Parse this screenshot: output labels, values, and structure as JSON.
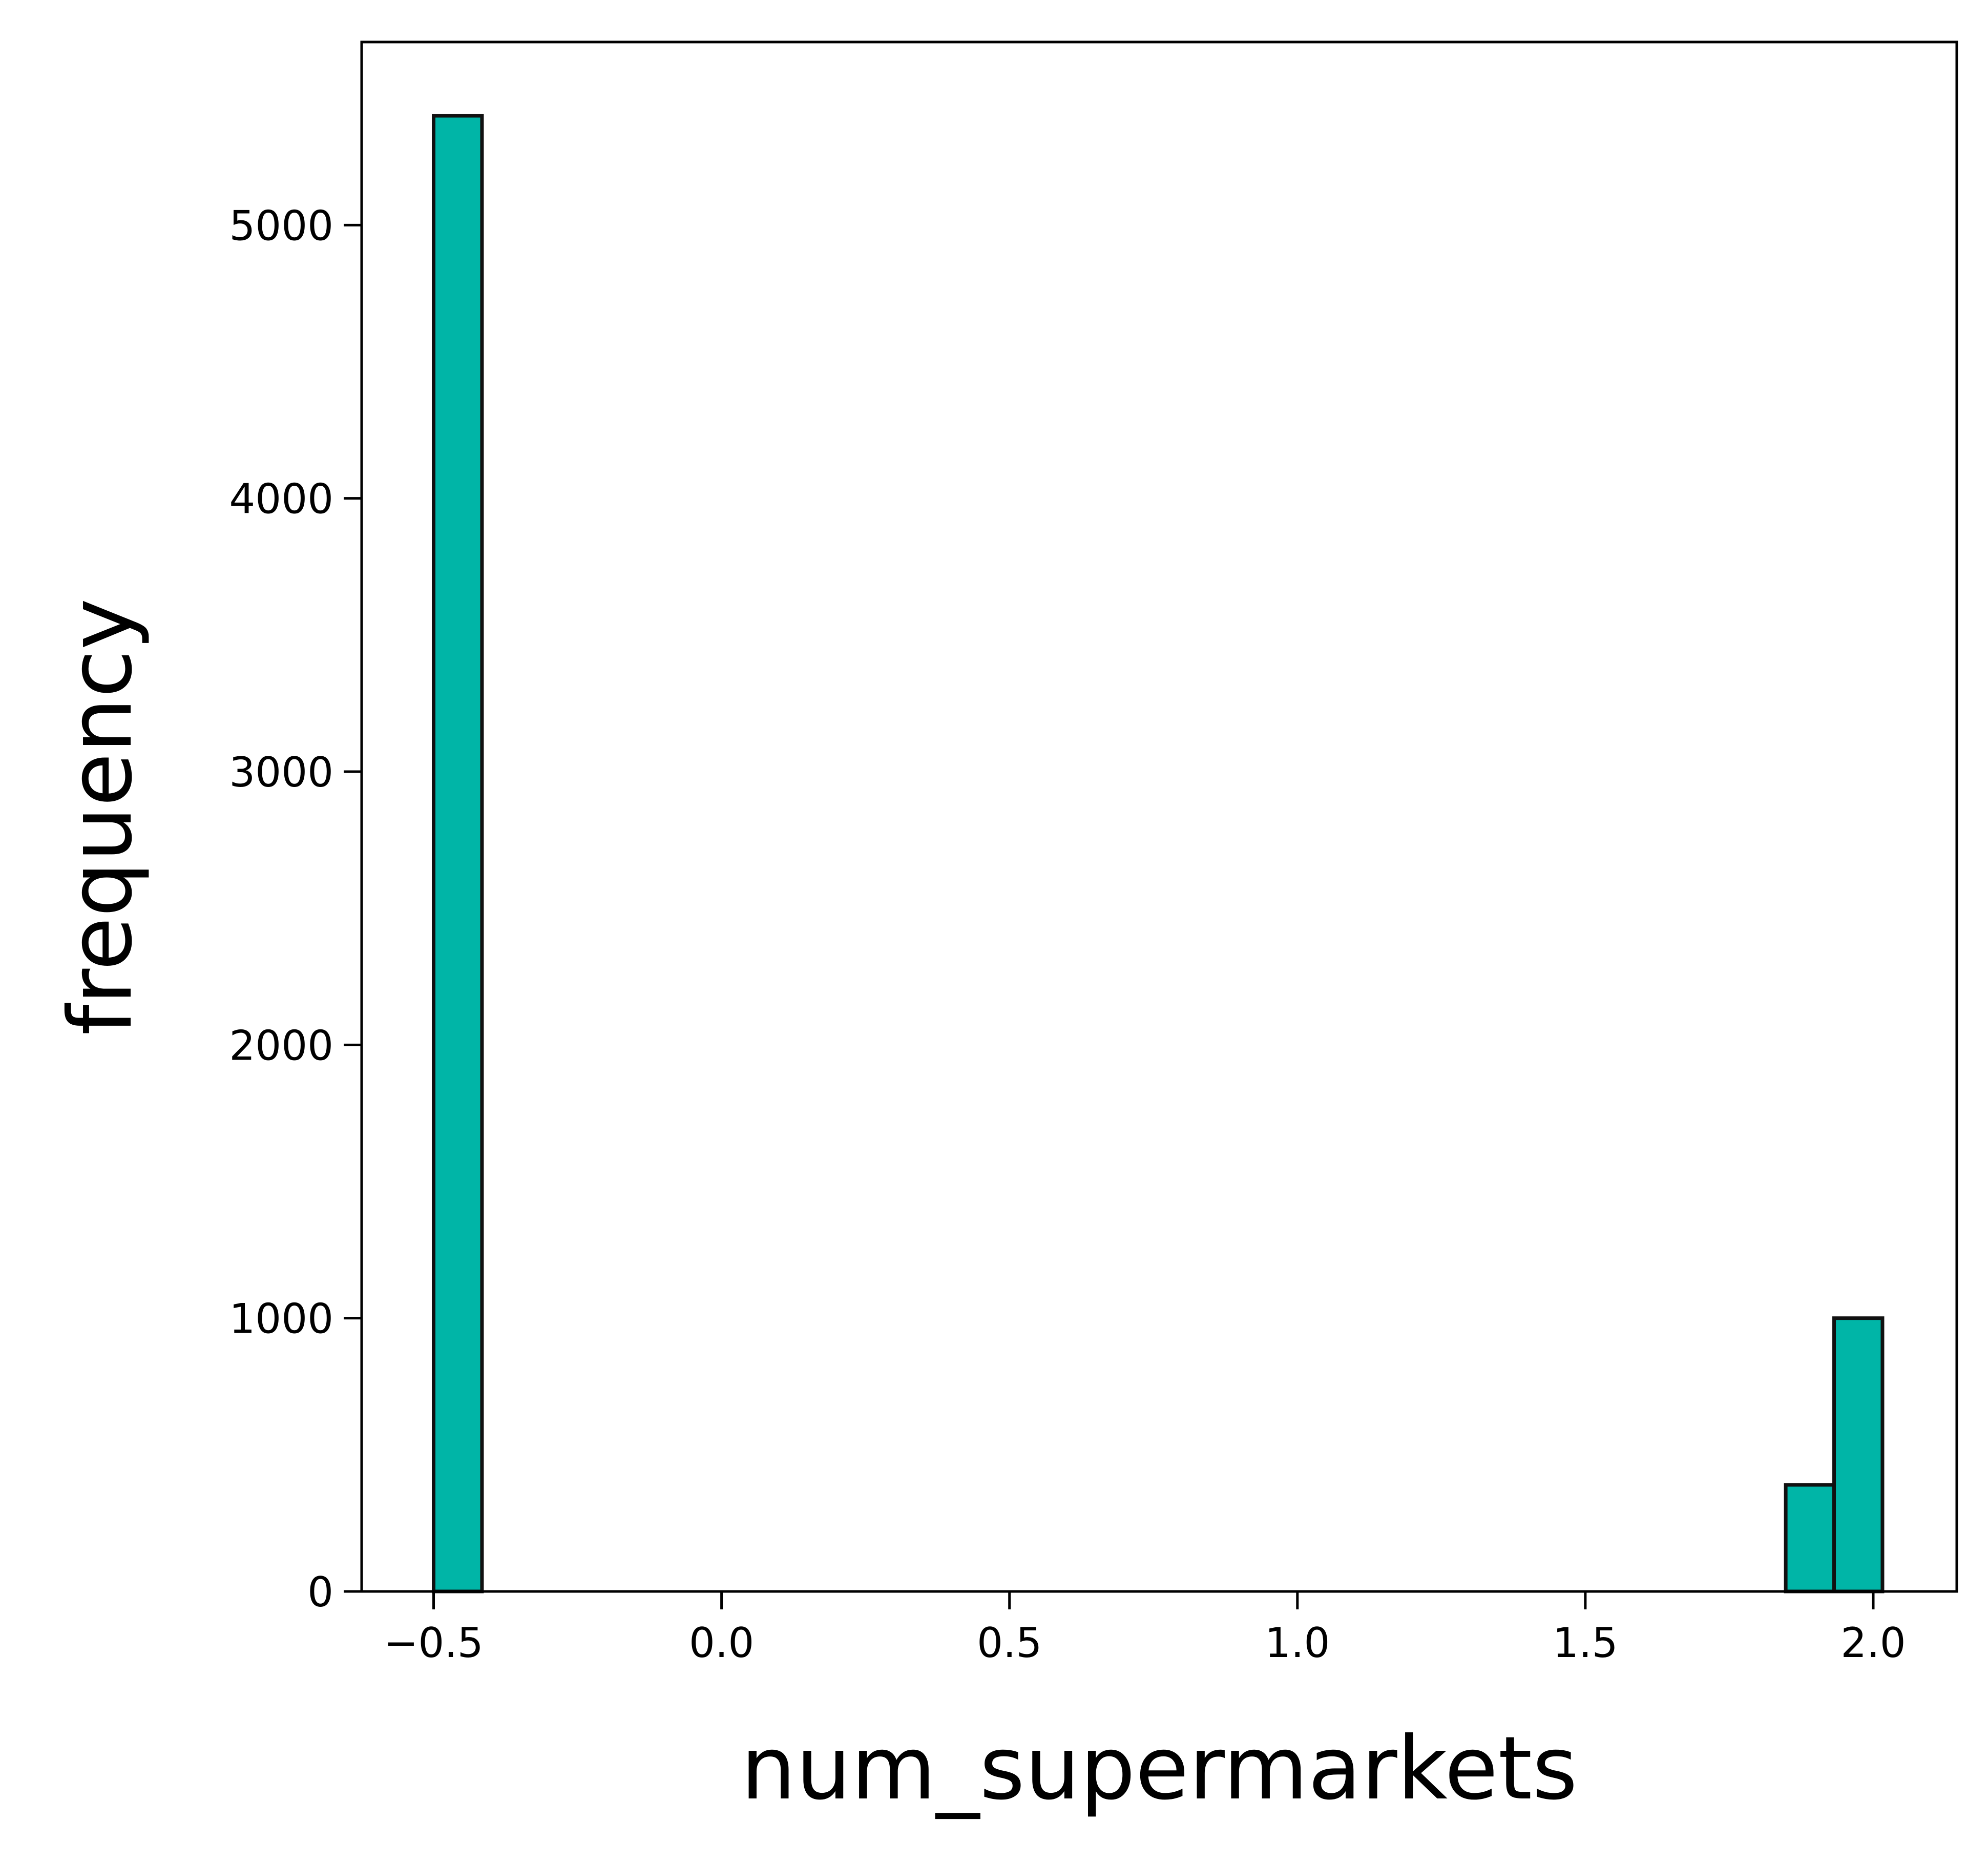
{
  "chart_data": {
    "type": "bar",
    "xlabel": "num_supermarkets",
    "ylabel": "frequency",
    "xlim": [
      -0.625,
      2.145
    ],
    "ylim": [
      0,
      5670
    ],
    "x_ticks": [
      {
        "value": -0.5,
        "label": "−0.5"
      },
      {
        "value": 0.0,
        "label": "0.0"
      },
      {
        "value": 0.5,
        "label": "0.5"
      },
      {
        "value": 1.0,
        "label": "1.0"
      },
      {
        "value": 1.5,
        "label": "1.5"
      },
      {
        "value": 2.0,
        "label": "2.0"
      }
    ],
    "y_ticks": [
      {
        "value": 0,
        "label": "0"
      },
      {
        "value": 1000,
        "label": "1000"
      },
      {
        "value": 2000,
        "label": "2000"
      },
      {
        "value": 3000,
        "label": "3000"
      },
      {
        "value": 4000,
        "label": "4000"
      },
      {
        "value": 5000,
        "label": "5000"
      }
    ],
    "bins": [
      {
        "x_start": -0.5,
        "x_end": -0.416,
        "value": 5400
      },
      {
        "x_start": 1.848,
        "x_end": 1.932,
        "value": 390
      },
      {
        "x_start": 1.932,
        "x_end": 2.016,
        "value": 1000
      }
    ],
    "grid": false,
    "colors": {
      "bar_fill": "#00b5a7",
      "bar_edge": "#111111",
      "axis": "#000000"
    }
  }
}
